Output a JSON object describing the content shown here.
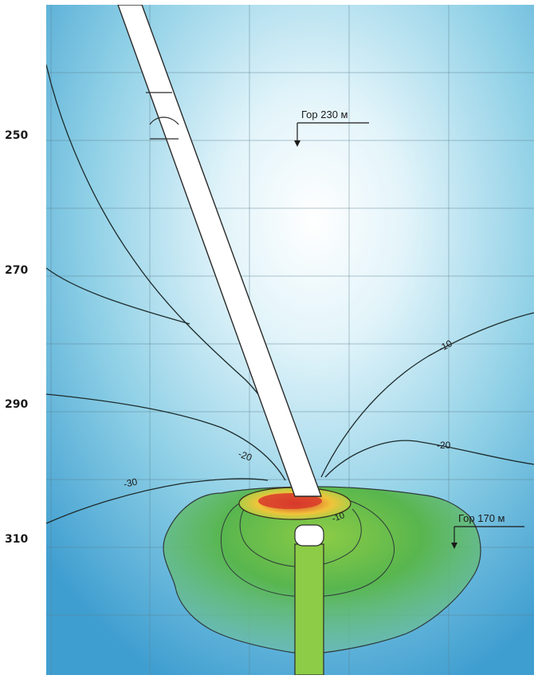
{
  "depth_axis": {
    "ticks": [
      {
        "label": "250",
        "value": 250
      },
      {
        "label": "270",
        "value": 270
      },
      {
        "label": "290",
        "value": 290
      },
      {
        "label": "310",
        "value": 310
      }
    ]
  },
  "horizons": [
    {
      "label": "Гор 230 м"
    },
    {
      "label": "Гор 170 м"
    }
  ],
  "contour_labels": [
    {
      "label": "-10"
    },
    {
      "label": "-20"
    },
    {
      "label": "-20"
    },
    {
      "label": "-30"
    },
    {
      "label": "-10"
    }
  ],
  "colors": {
    "field_light": "#e2f4fa",
    "field_mid": "#8fd0e6",
    "field_dark": "#3f9ed0",
    "anomaly_green": "#58b64e",
    "anomaly_core": "#d8392b",
    "anomaly_ring": "#f0c43a",
    "lower_shaft": "#8ccc46",
    "grid": "#5b7f8f"
  }
}
